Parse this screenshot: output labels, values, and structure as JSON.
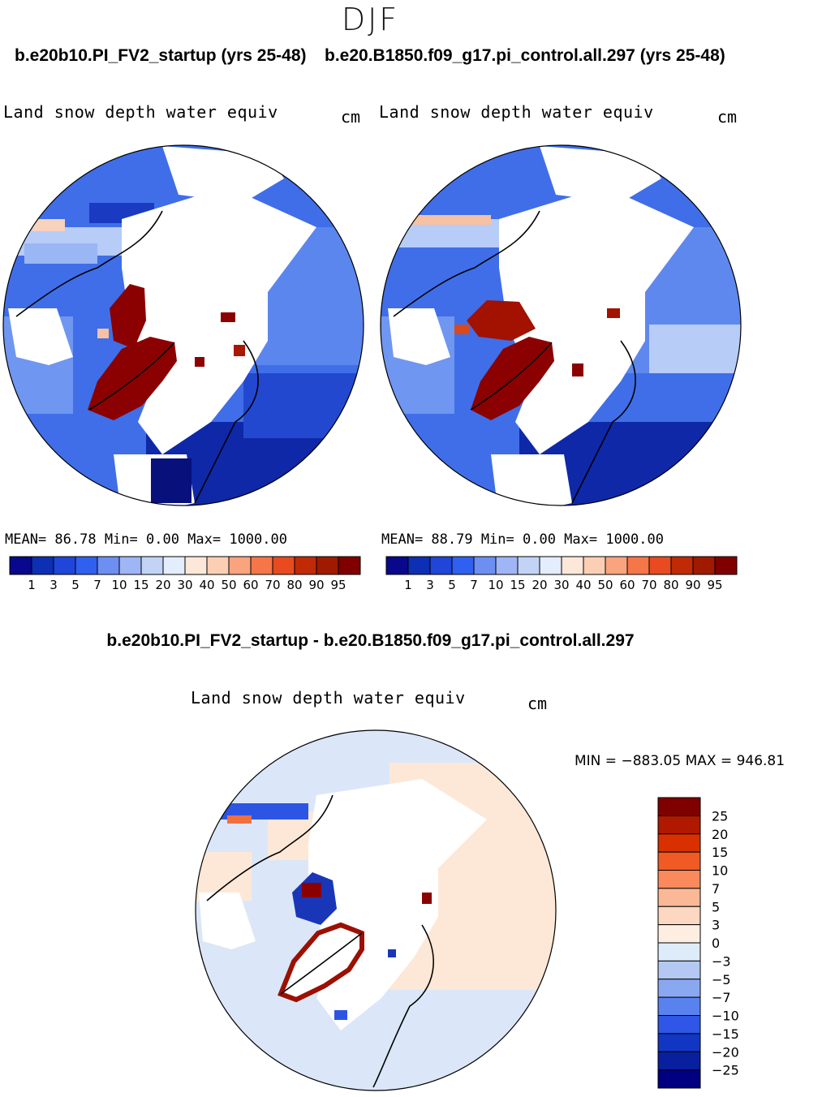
{
  "season": "DJF",
  "case1_title": "b.e20b10.PI_FV2_startup (yrs 25-48)",
  "case2_title": "b.e20.B1850.f09_g17.pi_control.all.297 (yrs 25-48)",
  "panel1": {
    "var_label": "Land snow depth water equiv",
    "unit": "cm",
    "stats": "MEAN=   86.78   Min=    0.00   Max= 1000.00"
  },
  "panel2": {
    "var_label": "Land snow depth water equiv",
    "unit": "cm",
    "stats": "MEAN=   88.79   Min=    0.00   Max= 1000.00"
  },
  "colorbar_abs": {
    "labels": [
      "1",
      "3",
      "5",
      "7",
      "10",
      "15",
      "20",
      "30",
      "40",
      "50",
      "60",
      "70",
      "80",
      "90",
      "95"
    ],
    "colors": [
      "#08088c",
      "#0c2fb3",
      "#1f46d9",
      "#2f60f0",
      "#6d8ff2",
      "#9eb6f5",
      "#c2d3f6",
      "#e3edfb",
      "#fce7d8",
      "#fbcfb3",
      "#f9a37f",
      "#f57648",
      "#e84b20",
      "#c12a07",
      "#a01a00",
      "#800000"
    ]
  },
  "diff_title": "b.e20b10.PI_FV2_startup - b.e20.B1850.f09_g17.pi_control.all.297",
  "panel3": {
    "var_label": "Land snow depth water equiv",
    "unit": "cm",
    "minmax": "MIN = −883.05 MAX = 946.81"
  },
  "colorbar_diff": {
    "labels": [
      "25",
      "20",
      "15",
      "10",
      "7",
      "5",
      "3",
      "0",
      "−3",
      "−5",
      "−7",
      "−10",
      "−15",
      "−20",
      "−25"
    ],
    "colors": [
      "#800000",
      "#b01800",
      "#d83000",
      "#f05a24",
      "#fa8a5b",
      "#fbb896",
      "#fcd7c2",
      "#fdeee1",
      "#deebf8",
      "#b3c9f4",
      "#8aa8f2",
      "#5a82ef",
      "#2f56e6",
      "#1136c4",
      "#08209e",
      "#000080"
    ]
  }
}
